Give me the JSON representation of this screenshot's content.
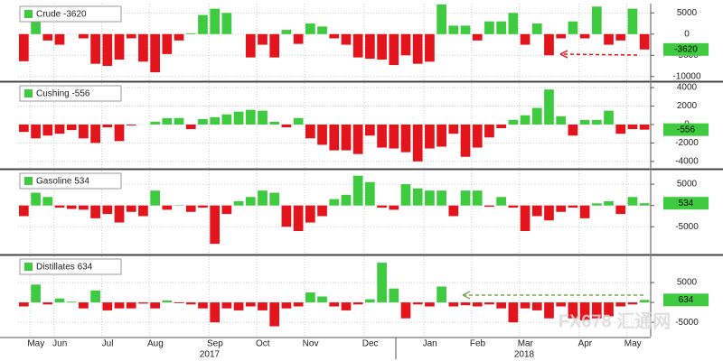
{
  "chart_data": [
    {
      "type": "bar",
      "name": "Crude -3620",
      "positive_color": "#3fcb3f",
      "negative_color": "#e3141b",
      "values": [
        -6400,
        3500,
        -1500,
        -2500,
        0,
        -1000,
        -7000,
        -7500,
        -6000,
        -1000,
        -6500,
        -9000,
        -4700,
        -1500,
        200,
        4500,
        6000,
        5000,
        0,
        -5500,
        -2500,
        -5500,
        1000,
        -2300,
        2500,
        1800,
        -1000,
        -2500,
        -5500,
        -5800,
        -6000,
        -7300,
        -5000,
        -7000,
        -6500,
        7000,
        2000,
        2000,
        -1500,
        3000,
        3000,
        5000,
        -2500,
        2500,
        -5000,
        -1000,
        3000,
        -1000,
        6500,
        -2500,
        -1500,
        6000,
        -3620
      ],
      "ylim": [
        -10900,
        7200
      ],
      "yticks": [
        5000,
        0,
        -5000,
        -10000
      ]
    },
    {
      "type": "bar",
      "name": "Cushing -556",
      "positive_color": "#3fcb3f",
      "negative_color": "#e3141b",
      "values": [
        -800,
        -1500,
        -1200,
        -1000,
        -600,
        -1500,
        -2000,
        -300,
        -1800,
        -100,
        0,
        300,
        700,
        700,
        -500,
        600,
        800,
        1100,
        1400,
        1600,
        1500,
        300,
        -300,
        700,
        -1500,
        -2200,
        -2800,
        -2800,
        -3200,
        -1200,
        -2500,
        -2600,
        -3000,
        -4000,
        -2600,
        -2400,
        -1000,
        -3500,
        -2500,
        -1400,
        -400,
        500,
        1000,
        1800,
        3800,
        900,
        -1200,
        500,
        500,
        1500,
        -1000,
        -500,
        -556
      ],
      "ylim": [
        -4700,
        4500
      ],
      "yticks": [
        4000,
        2000,
        0,
        -2000,
        -4000
      ]
    },
    {
      "type": "bar",
      "name": "Gasoline 534",
      "positive_color": "#3fcb3f",
      "negative_color": "#e3141b",
      "values": [
        -2500,
        3000,
        2000,
        -500,
        -800,
        -1000,
        -3000,
        -2000,
        -4000,
        -1500,
        -2500,
        3500,
        -1000,
        100,
        -1500,
        -500,
        -9000,
        -2000,
        1000,
        2000,
        3500,
        3000,
        -5000,
        -6000,
        -4000,
        -2500,
        1500,
        2500,
        7000,
        5500,
        -500,
        -1000,
        5000,
        4000,
        3500,
        3500,
        -2500,
        3500,
        3500,
        -300,
        2000,
        -500,
        -6000,
        -2500,
        -3500,
        -1500,
        -500,
        -3000,
        500,
        1000,
        -2000,
        2000,
        534
      ],
      "ylim": [
        -11300,
        8200
      ],
      "yticks": [
        5000,
        0,
        -5000
      ]
    },
    {
      "type": "bar",
      "name": "Distillates 634",
      "positive_color": "#3fcb3f",
      "negative_color": "#e3141b",
      "values": [
        -1000,
        4500,
        -500,
        1000,
        200,
        -1500,
        3000,
        -2000,
        -1500,
        -1500,
        -300,
        -1500,
        500,
        -200,
        -500,
        -1500,
        -5000,
        -1500,
        -2000,
        -1000,
        -2000,
        -6000,
        -1500,
        -1000,
        2500,
        1500,
        -1000,
        -2000,
        -500,
        800,
        10000,
        3500,
        -4000,
        -500,
        -1000,
        4000,
        -1000,
        -700,
        -1000,
        -500,
        -1500,
        -5000,
        -1500,
        -2000,
        -4000,
        -1000,
        -4000,
        -4500,
        -4000,
        -3500,
        -1000,
        -500,
        634
      ],
      "ylim": [
        -8600,
        11600
      ],
      "yticks": [
        5000,
        0,
        -5000
      ],
      "categories": [
        null,
        "May",
        null,
        "Jun",
        null,
        null,
        null,
        "Jul",
        null,
        null,
        null,
        "Aug",
        null,
        null,
        null,
        null,
        "Sep",
        null,
        null,
        null,
        "Oct",
        null,
        null,
        null,
        "Nov",
        null,
        null,
        null,
        null,
        "Dec",
        null,
        null,
        null,
        null,
        "Jan",
        null,
        null,
        null,
        "Feb",
        null,
        null,
        null,
        "Mar",
        null,
        null,
        null,
        null,
        "Apr",
        null,
        null,
        null,
        "May",
        null
      ],
      "years": [
        "2017",
        "2018"
      ]
    }
  ],
  "watermark": "FX678 汇通网"
}
